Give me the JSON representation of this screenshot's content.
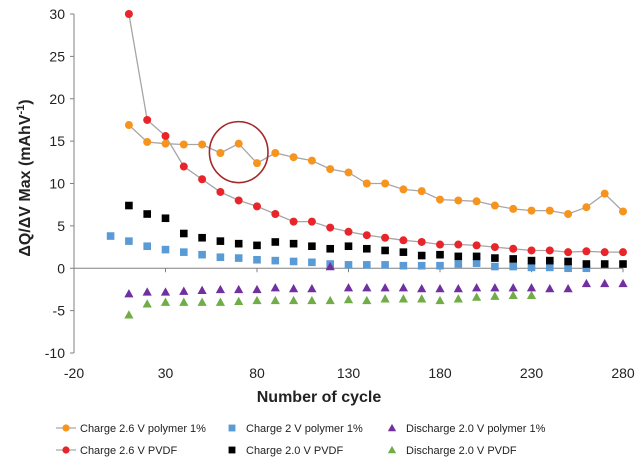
{
  "chart_data": {
    "type": "scatter",
    "xlabel": "Number of cycle",
    "ylabel_main": "ΔQ/ΔV Max (mAhV",
    "ylabel_sup": "-1",
    "ylabel_close": ")",
    "xlim": [
      -20,
      280
    ],
    "ylim": [
      -10,
      30
    ],
    "xticks": [
      -20,
      30,
      80,
      130,
      180,
      230,
      280
    ],
    "yticks": [
      -10,
      -5,
      0,
      5,
      10,
      15,
      20,
      25,
      30
    ],
    "grid": false,
    "legend_position": "bottom",
    "highlight_circle": {
      "x_center": 70,
      "y_center": 13.7,
      "x_radius": 16,
      "y_radius": 3.6,
      "color": "#a52a2a"
    },
    "series": [
      {
        "name": "Charge 2.6 V polymer 1%",
        "marker": "circle",
        "color": "#f7941d",
        "line_color": "#a6a6a6",
        "connected": true,
        "points": [
          [
            10,
            16.9
          ],
          [
            20,
            14.9
          ],
          [
            30,
            14.7
          ],
          [
            40,
            14.6
          ],
          [
            50,
            14.6
          ],
          [
            60,
            13.6
          ],
          [
            70,
            14.7
          ],
          [
            80,
            12.4
          ],
          [
            90,
            13.6
          ],
          [
            100,
            13.1
          ],
          [
            110,
            12.7
          ],
          [
            120,
            11.7
          ],
          [
            130,
            11.3
          ],
          [
            140,
            10.0
          ],
          [
            150,
            10.0
          ],
          [
            160,
            9.3
          ],
          [
            170,
            9.1
          ],
          [
            180,
            8.1
          ],
          [
            190,
            8.0
          ],
          [
            200,
            7.9
          ],
          [
            210,
            7.4
          ],
          [
            220,
            7.0
          ],
          [
            230,
            6.8
          ],
          [
            240,
            6.8
          ],
          [
            250,
            6.4
          ],
          [
            260,
            7.2
          ],
          [
            270,
            8.8
          ],
          [
            280,
            6.7
          ]
        ]
      },
      {
        "name": "Charge 2.6 V PVDF",
        "marker": "circle",
        "color": "#e8252a",
        "line_color": "#a6a6a6",
        "connected": true,
        "points": [
          [
            10,
            30.0
          ],
          [
            20,
            17.5
          ],
          [
            30,
            15.6
          ],
          [
            40,
            12.0
          ],
          [
            50,
            10.5
          ],
          [
            60,
            9.0
          ],
          [
            70,
            8.0
          ],
          [
            80,
            7.3
          ],
          [
            90,
            6.4
          ],
          [
            100,
            5.5
          ],
          [
            110,
            5.5
          ],
          [
            120,
            4.8
          ],
          [
            130,
            4.3
          ],
          [
            140,
            3.9
          ],
          [
            150,
            3.6
          ],
          [
            160,
            3.3
          ],
          [
            170,
            3.1
          ],
          [
            180,
            2.8
          ],
          [
            190,
            2.8
          ],
          [
            200,
            2.7
          ],
          [
            210,
            2.5
          ],
          [
            220,
            2.3
          ],
          [
            230,
            2.1
          ],
          [
            240,
            2.1
          ],
          [
            250,
            1.9
          ],
          [
            260,
            2.0
          ],
          [
            270,
            1.9
          ],
          [
            280,
            1.9
          ]
        ]
      },
      {
        "name": "Charge 2 V polymer 1%",
        "marker": "square",
        "color": "#5b9bd5",
        "connected": false,
        "points": [
          [
            0,
            3.8
          ],
          [
            10,
            3.2
          ],
          [
            20,
            2.6
          ],
          [
            30,
            2.2
          ],
          [
            40,
            1.9
          ],
          [
            50,
            1.6
          ],
          [
            60,
            1.3
          ],
          [
            70,
            1.2
          ],
          [
            80,
            1.0
          ],
          [
            90,
            0.9
          ],
          [
            100,
            0.8
          ],
          [
            110,
            0.7
          ],
          [
            120,
            0.5
          ],
          [
            130,
            0.4
          ],
          [
            140,
            0.4
          ],
          [
            150,
            0.4
          ],
          [
            160,
            0.3
          ],
          [
            170,
            0.3
          ],
          [
            180,
            0.3
          ],
          [
            190,
            0.5
          ],
          [
            200,
            0.6
          ],
          [
            210,
            0.2
          ],
          [
            220,
            0.2
          ],
          [
            230,
            0.1
          ],
          [
            240,
            0.1
          ],
          [
            250,
            0.0
          ],
          [
            260,
            0.0
          ]
        ]
      },
      {
        "name": "Charge 2.0 V PVDF",
        "marker": "square",
        "color": "#000000",
        "connected": false,
        "points": [
          [
            10,
            7.4
          ],
          [
            20,
            6.4
          ],
          [
            30,
            5.9
          ],
          [
            40,
            4.1
          ],
          [
            50,
            3.6
          ],
          [
            60,
            3.2
          ],
          [
            70,
            2.9
          ],
          [
            80,
            2.7
          ],
          [
            90,
            3.1
          ],
          [
            100,
            2.9
          ],
          [
            110,
            2.6
          ],
          [
            120,
            2.3
          ],
          [
            130,
            2.6
          ],
          [
            140,
            2.3
          ],
          [
            150,
            2.1
          ],
          [
            160,
            1.9
          ],
          [
            170,
            1.5
          ],
          [
            180,
            1.6
          ],
          [
            190,
            1.4
          ],
          [
            200,
            1.4
          ],
          [
            210,
            1.2
          ],
          [
            220,
            1.1
          ],
          [
            230,
            0.9
          ],
          [
            240,
            0.9
          ],
          [
            250,
            0.8
          ],
          [
            260,
            0.5
          ],
          [
            270,
            0.5
          ],
          [
            280,
            0.5
          ]
        ]
      },
      {
        "name": "Discharge 2.0 V polymer 1%",
        "marker": "triangle",
        "color": "#7030a0",
        "connected": false,
        "points": [
          [
            10,
            -3.0
          ],
          [
            20,
            -2.8
          ],
          [
            30,
            -2.8
          ],
          [
            40,
            -2.7
          ],
          [
            50,
            -2.6
          ],
          [
            60,
            -2.5
          ],
          [
            70,
            -2.5
          ],
          [
            80,
            -2.5
          ],
          [
            90,
            -2.3
          ],
          [
            100,
            -2.4
          ],
          [
            110,
            -2.4
          ],
          [
            120,
            0.2
          ],
          [
            130,
            -2.3
          ],
          [
            140,
            -2.3
          ],
          [
            150,
            -2.3
          ],
          [
            160,
            -2.3
          ],
          [
            170,
            -2.4
          ],
          [
            180,
            -2.4
          ],
          [
            190,
            -2.4
          ],
          [
            200,
            -2.3
          ],
          [
            210,
            -2.3
          ],
          [
            220,
            -2.3
          ],
          [
            230,
            -2.3
          ],
          [
            240,
            -2.4
          ],
          [
            250,
            -2.4
          ],
          [
            260,
            -1.8
          ],
          [
            270,
            -1.8
          ],
          [
            280,
            -1.8
          ]
        ]
      },
      {
        "name": "Discharge 2.0 V PVDF",
        "marker": "triangle",
        "color": "#70ad47",
        "connected": false,
        "points": [
          [
            10,
            -5.5
          ],
          [
            20,
            -4.2
          ],
          [
            30,
            -4.0
          ],
          [
            40,
            -4.0
          ],
          [
            50,
            -4.0
          ],
          [
            60,
            -4.0
          ],
          [
            70,
            -3.9
          ],
          [
            80,
            -3.8
          ],
          [
            90,
            -3.8
          ],
          [
            100,
            -3.8
          ],
          [
            110,
            -3.8
          ],
          [
            120,
            -3.8
          ],
          [
            130,
            -3.7
          ],
          [
            140,
            -3.8
          ],
          [
            150,
            -3.6
          ],
          [
            160,
            -3.6
          ],
          [
            170,
            -3.6
          ],
          [
            180,
            -3.8
          ],
          [
            190,
            -3.6
          ],
          [
            200,
            -3.4
          ],
          [
            210,
            -3.3
          ],
          [
            220,
            -3.2
          ],
          [
            230,
            -3.2
          ]
        ]
      }
    ],
    "legend_rows": [
      [
        "Charge 2.6 V polymer 1%",
        "Charge 2 V polymer 1%",
        "Discharge 2.0 V polymer 1%"
      ],
      [
        "Charge 2.6 V PVDF",
        "Charge 2.0 V PVDF",
        "Discharge 2.0 V PVDF"
      ]
    ]
  }
}
